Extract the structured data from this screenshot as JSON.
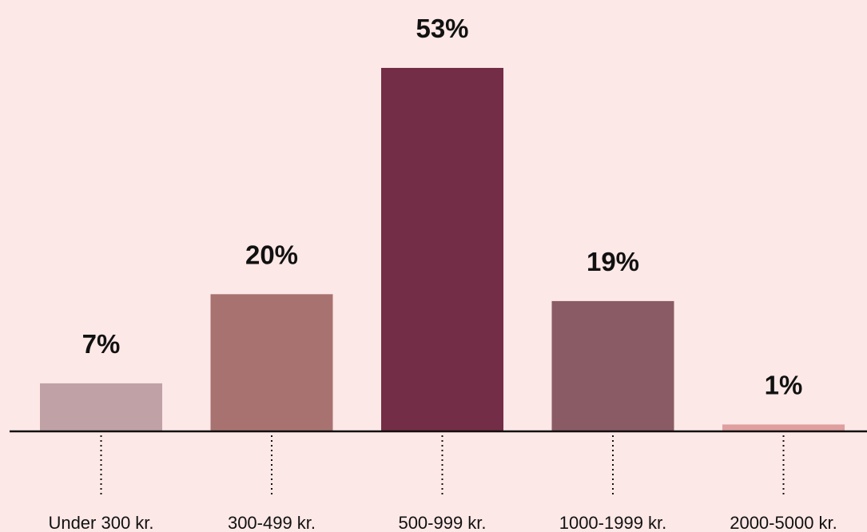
{
  "chart_data": {
    "type": "bar",
    "categories": [
      "Under 300 kr.",
      "300-499 kr.",
      "500-999 kr.",
      "1000-1999 kr.",
      "2000-5000 kr."
    ],
    "values": [
      7,
      20,
      53,
      19,
      1
    ],
    "value_labels": [
      "7%",
      "20%",
      "53%",
      "19%",
      "1%"
    ],
    "bar_colors": [
      "#c0a2a6",
      "#a87270",
      "#742d46",
      "#8a5b64",
      "#df9f9f"
    ],
    "ylim": [
      0,
      53
    ],
    "grid": false,
    "title": "",
    "xlabel": "",
    "ylabel": ""
  },
  "colors": {
    "background": "#fce8e6",
    "axis": "#111111",
    "text": "#111111"
  }
}
